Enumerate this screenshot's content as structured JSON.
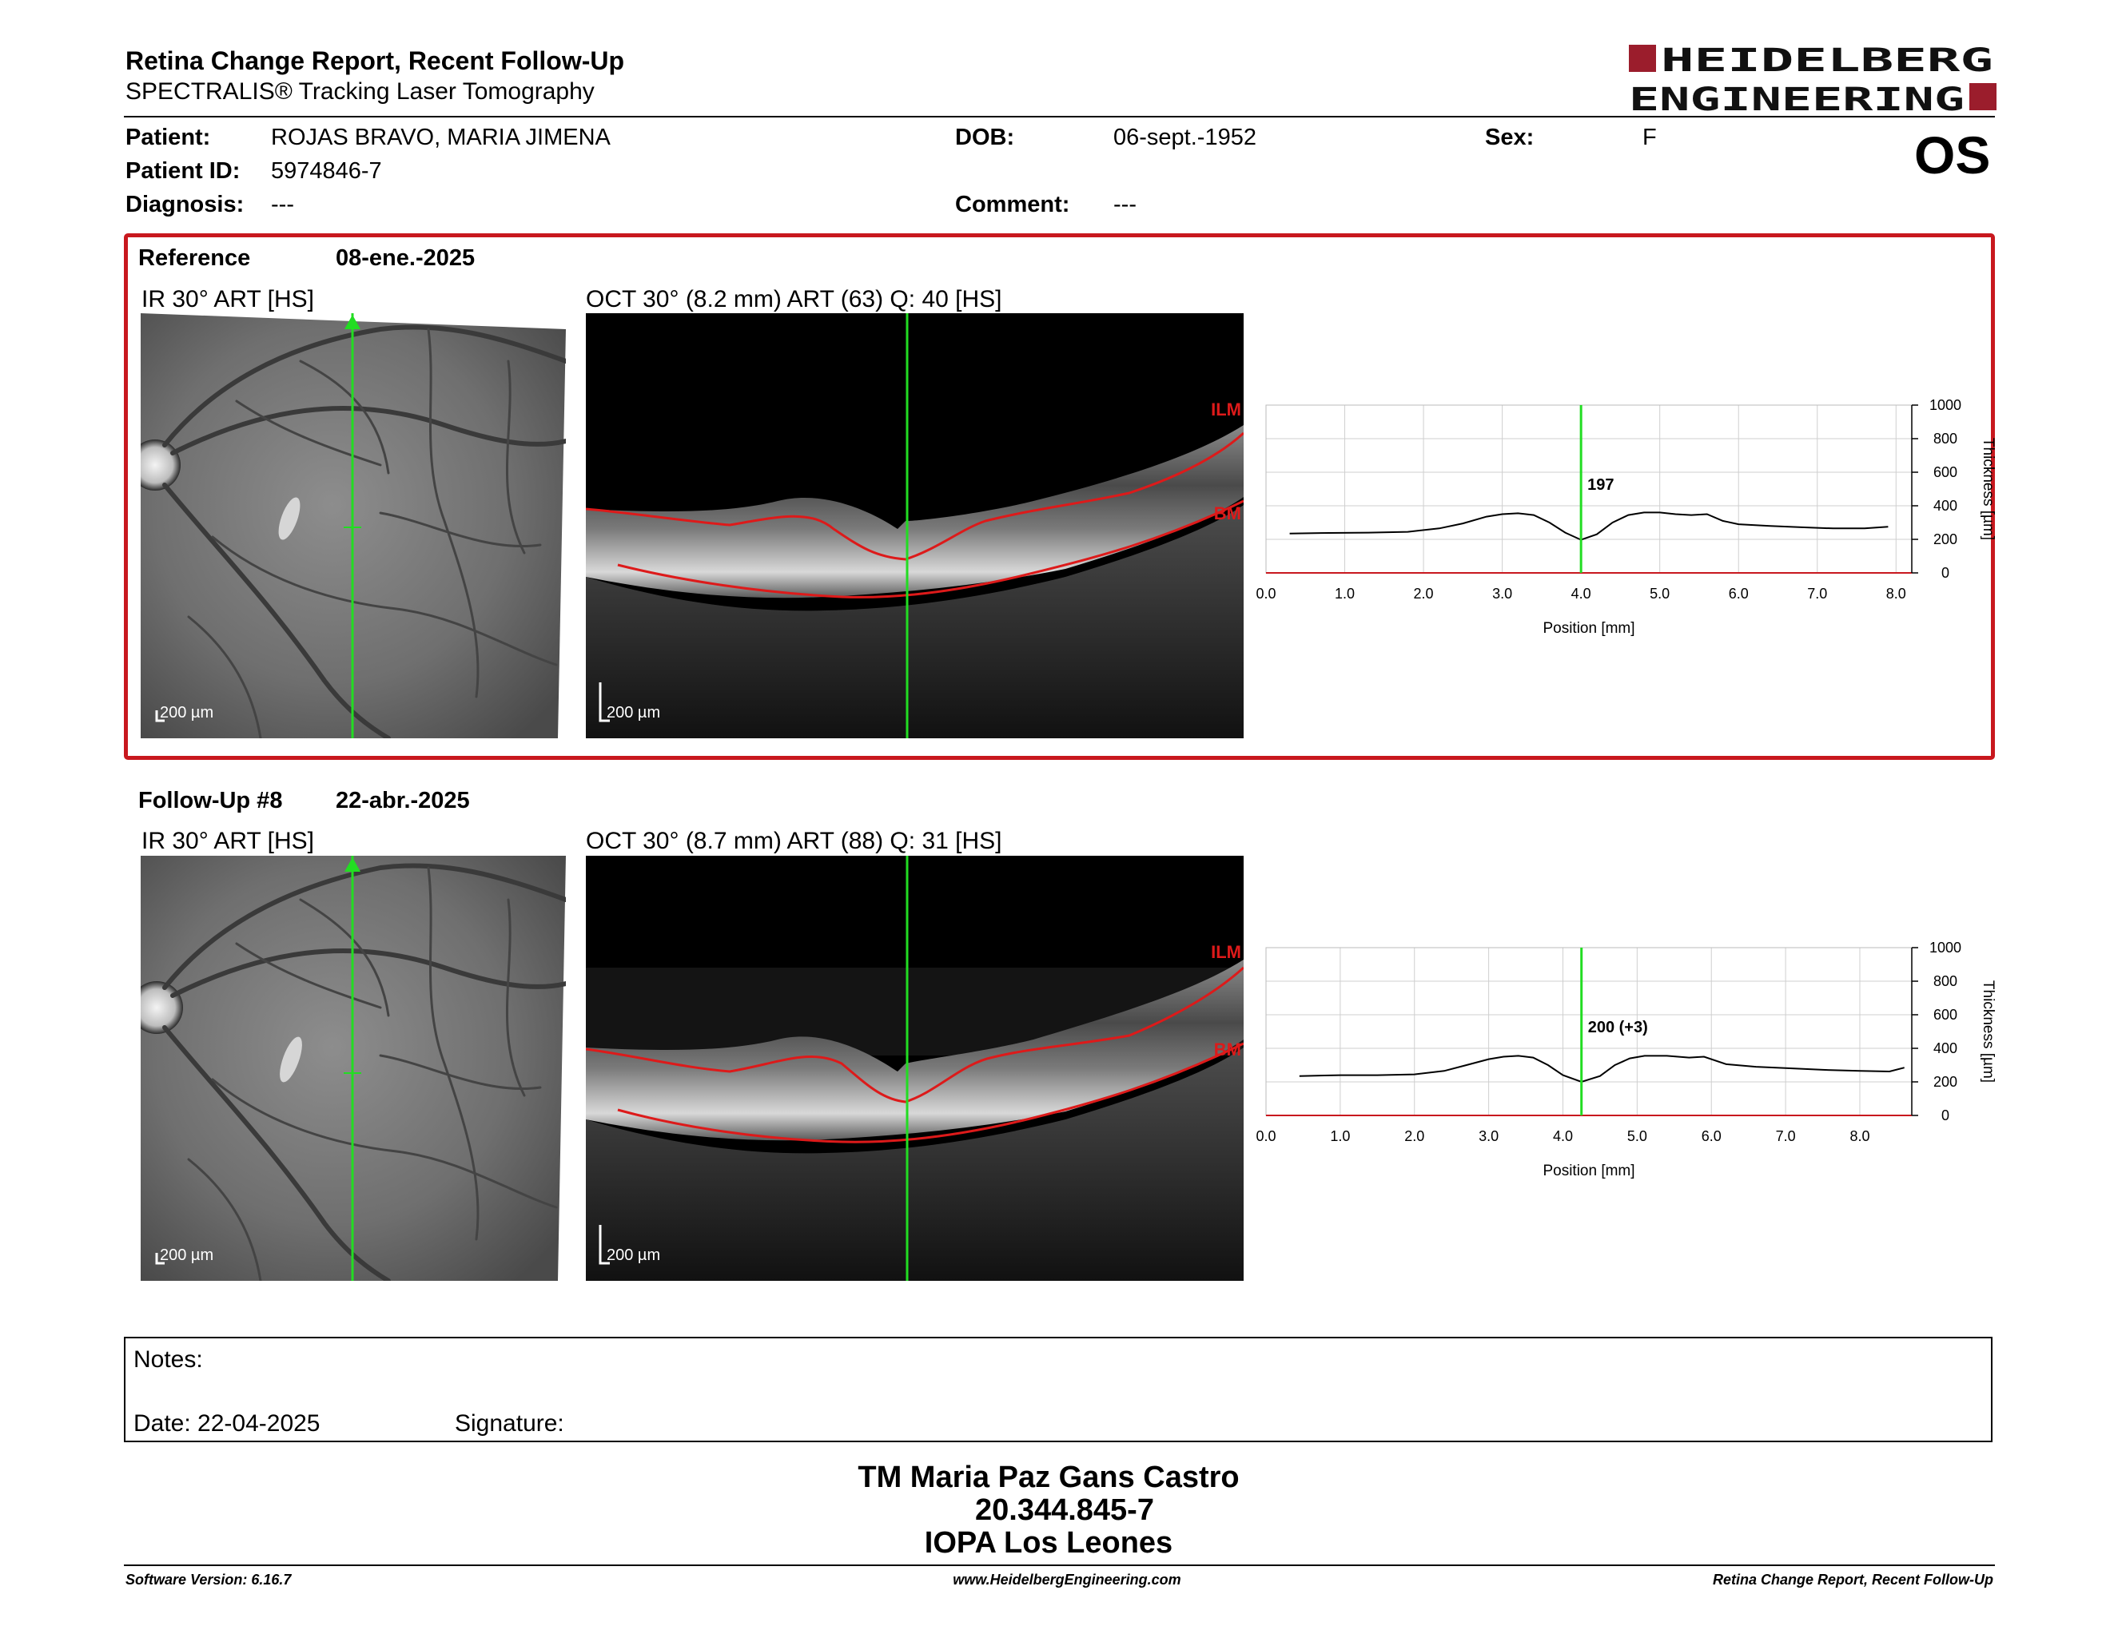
{
  "header": {
    "title": "Retina Change Report, Recent Follow-Up",
    "subtitle": "SPECTRALIS® Tracking Laser Tomography",
    "logo_text": "HEIDELBERG ENGINEERING"
  },
  "patient": {
    "patient_label": "Patient:",
    "patient_name": "ROJAS BRAVO, MARIA JIMENA",
    "id_label": "Patient ID:",
    "id_value": "5974846-7",
    "diagnosis_label": "Diagnosis:",
    "diagnosis_value": "---",
    "dob_label": "DOB:",
    "dob_value": "06-sept.-1952",
    "comment_label": "Comment:",
    "comment_value": "---",
    "sex_label": "Sex:",
    "sex_value": "F",
    "eye": "OS"
  },
  "reference": {
    "label": "Reference",
    "date": "08-ene.-2025",
    "ir_title": "IR 30° ART [HS]",
    "oct_title": "OCT 30° (8.2 mm) ART (63) Q: 40 [HS]",
    "scale_label": "200 µm",
    "ilm_label": "ILM",
    "bm_label": "BM"
  },
  "followup": {
    "label": "Follow-Up #8",
    "date": "22-abr.-2025",
    "ir_title": "IR 30° ART [HS]",
    "oct_title": "OCT 30° (8.7 mm) ART (88) Q: 31 [HS]",
    "scale_label": "200 µm",
    "ilm_label": "ILM",
    "bm_label": "BM"
  },
  "chart_data": [
    {
      "type": "line",
      "xlabel": "Position [mm]",
      "ylabel": "Thickness [µm]",
      "xlim": [
        0.0,
        8.2
      ],
      "ylim": [
        0,
        1000
      ],
      "x_ticks": [
        "0.0",
        "1.0",
        "2.0",
        "3.0",
        "4.0",
        "5.0",
        "6.0",
        "7.0",
        "8.0"
      ],
      "y_ticks": [
        "0",
        "200",
        "400",
        "600",
        "800",
        "1000"
      ],
      "grid": true,
      "marker_x": 4.0,
      "marker_label": "197",
      "x": [
        0.3,
        0.8,
        1.3,
        1.8,
        2.2,
        2.5,
        2.8,
        3.0,
        3.2,
        3.4,
        3.6,
        3.8,
        4.0,
        4.2,
        4.4,
        4.6,
        4.8,
        5.0,
        5.2,
        5.4,
        5.6,
        5.8,
        6.0,
        6.4,
        6.8,
        7.2,
        7.6,
        7.9
      ],
      "y": [
        235,
        238,
        240,
        245,
        265,
        295,
        335,
        350,
        355,
        345,
        300,
        240,
        197,
        230,
        300,
        345,
        360,
        360,
        350,
        345,
        350,
        310,
        290,
        280,
        272,
        265,
        265,
        275
      ]
    },
    {
      "type": "line",
      "xlabel": "Position [mm]",
      "ylabel": "Thickness [µm]",
      "xlim": [
        0.0,
        8.7
      ],
      "ylim": [
        0,
        1000
      ],
      "x_ticks": [
        "0.0",
        "1.0",
        "2.0",
        "3.0",
        "4.0",
        "5.0",
        "6.0",
        "7.0",
        "8.0"
      ],
      "y_ticks": [
        "0",
        "200",
        "400",
        "600",
        "800",
        "1000"
      ],
      "grid": true,
      "marker_x": 4.25,
      "marker_label": "200 (+3)",
      "x": [
        0.45,
        1.0,
        1.5,
        2.0,
        2.4,
        2.7,
        3.0,
        3.2,
        3.4,
        3.6,
        3.8,
        4.0,
        4.25,
        4.5,
        4.7,
        4.9,
        5.1,
        5.4,
        5.7,
        5.9,
        6.2,
        6.6,
        7.0,
        7.5,
        8.0,
        8.4,
        8.6
      ],
      "y": [
        235,
        240,
        240,
        245,
        265,
        300,
        335,
        350,
        355,
        345,
        300,
        240,
        200,
        235,
        300,
        340,
        355,
        355,
        345,
        350,
        305,
        290,
        282,
        272,
        265,
        262,
        285
      ]
    }
  ],
  "notes": {
    "notes_label": "Notes:",
    "date_label": "Date: 22-04-2025",
    "signature_label": "Signature:"
  },
  "signature_block": {
    "line1": "TM Maria Paz Gans Castro",
    "line2": "20.344.845-7",
    "line3": "IOPA Los Leones"
  },
  "footer": {
    "software": "Software Version: 6.16.7",
    "website": "www.HeidelbergEngineering.com",
    "report": "Retina Change Report, Recent Follow-Up"
  },
  "colors": {
    "accent_red": "#c8181e",
    "brand_dark_red": "#9b1d2c",
    "marker_green": "#22dd22",
    "layer_red": "#dd1a1a"
  }
}
